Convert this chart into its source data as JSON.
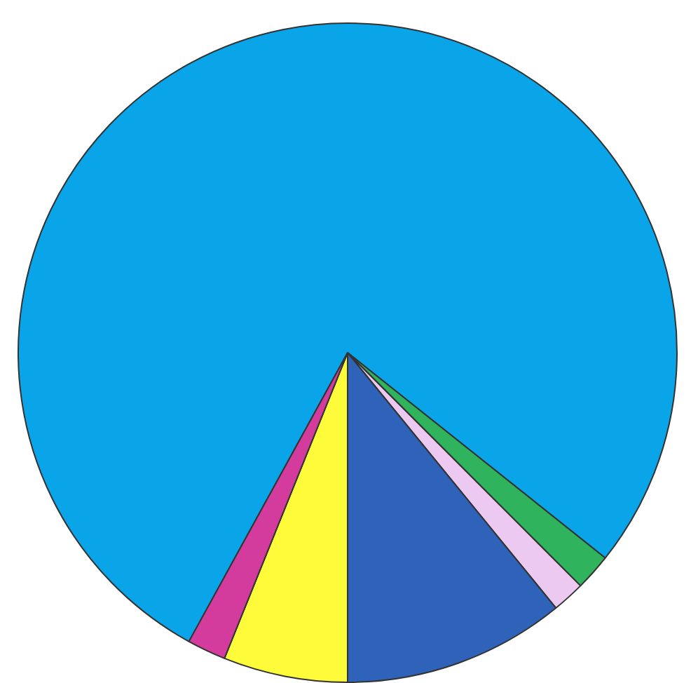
{
  "chart_data": {
    "type": "pie",
    "categories": [
      null,
      null,
      null,
      null,
      null,
      null
    ],
    "values": [
      77.7,
      1.8,
      1.6,
      10.9,
      6.1,
      1.9
    ],
    "colors": [
      "#0aa5e8",
      "#2fb35c",
      "#ebc9f0",
      "#2f63b9",
      "#fdfb3a",
      "#d33c9c"
    ],
    "legend": false
  }
}
